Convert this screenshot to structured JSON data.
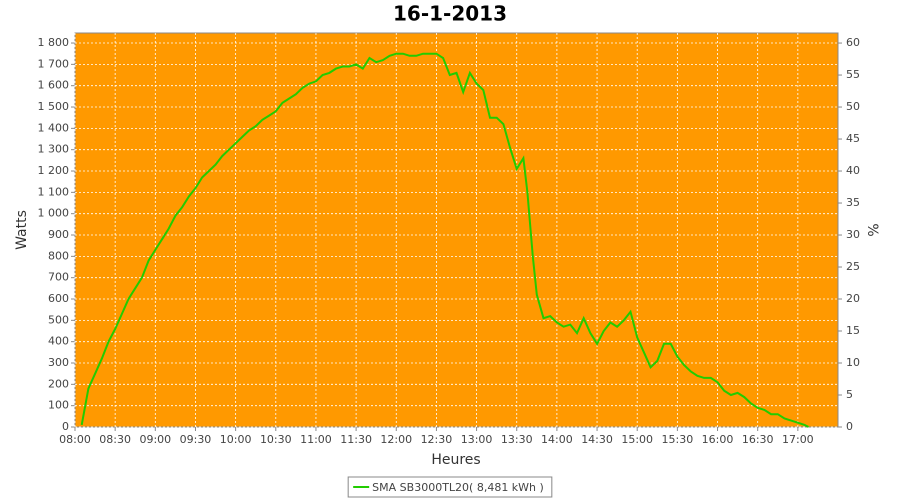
{
  "chart_data": {
    "type": "line",
    "title": "16-1-2013",
    "xlabel": "Heures",
    "ylabel": "Watts",
    "y2label": "%",
    "x": [
      485,
      490,
      495,
      500,
      505,
      510,
      515,
      520,
      525,
      530,
      535,
      540,
      545,
      550,
      555,
      560,
      565,
      570,
      575,
      580,
      585,
      590,
      595,
      600,
      605,
      610,
      615,
      620,
      625,
      630,
      635,
      640,
      645,
      650,
      655,
      660,
      665,
      670,
      675,
      680,
      685,
      690,
      695,
      700,
      705,
      710,
      715,
      720,
      725,
      730,
      735,
      740,
      745,
      750,
      755,
      760,
      765,
      770,
      775,
      780,
      785,
      790,
      795,
      800,
      805,
      810,
      815,
      818,
      822,
      825,
      830,
      835,
      840,
      845,
      850,
      855,
      860,
      865,
      870,
      875,
      880,
      885,
      890,
      895,
      900,
      905,
      910,
      915,
      920,
      925,
      930,
      935,
      940,
      945,
      950,
      955,
      960,
      965,
      970,
      975,
      980,
      985,
      990,
      995,
      1000,
      1005,
      1010,
      1015,
      1020,
      1025,
      1028
    ],
    "series": [
      {
        "name": "SMA SB3000TL20( 8,481 kWh )",
        "color": "#22cc00",
        "values": [
          10,
          180,
          250,
          320,
          400,
          460,
          530,
          600,
          650,
          700,
          780,
          830,
          880,
          930,
          990,
          1030,
          1080,
          1120,
          1170,
          1200,
          1230,
          1270,
          1300,
          1330,
          1360,
          1390,
          1410,
          1440,
          1460,
          1480,
          1520,
          1540,
          1560,
          1590,
          1610,
          1620,
          1650,
          1660,
          1680,
          1690,
          1690,
          1700,
          1680,
          1730,
          1710,
          1720,
          1740,
          1750,
          1750,
          1740,
          1740,
          1750,
          1750,
          1750,
          1730,
          1650,
          1660,
          1570,
          1660,
          1610,
          1580,
          1450,
          1450,
          1420,
          1310,
          1210,
          1260,
          1100,
          800,
          620,
          510,
          520,
          490,
          470,
          480,
          440,
          510,
          440,
          390,
          450,
          490,
          470,
          500,
          540,
          420,
          350,
          280,
          310,
          390,
          390,
          330,
          290,
          260,
          240,
          230,
          230,
          210,
          170,
          150,
          160,
          140,
          110,
          90,
          80,
          60,
          60,
          40,
          30,
          20,
          10,
          0
        ]
      }
    ],
    "xlim": [
      480,
      1050
    ],
    "xticks": [
      {
        "value": 480,
        "label": "08:00"
      },
      {
        "value": 510,
        "label": "08:30"
      },
      {
        "value": 540,
        "label": "09:00"
      },
      {
        "value": 570,
        "label": "09:30"
      },
      {
        "value": 600,
        "label": "10:00"
      },
      {
        "value": 630,
        "label": "10:30"
      },
      {
        "value": 660,
        "label": "11:00"
      },
      {
        "value": 690,
        "label": "11:30"
      },
      {
        "value": 720,
        "label": "12:00"
      },
      {
        "value": 750,
        "label": "12:30"
      },
      {
        "value": 780,
        "label": "13:00"
      },
      {
        "value": 810,
        "label": "13:30"
      },
      {
        "value": 840,
        "label": "14:00"
      },
      {
        "value": 870,
        "label": "14:30"
      },
      {
        "value": 900,
        "label": "15:00"
      },
      {
        "value": 930,
        "label": "15:30"
      },
      {
        "value": 960,
        "label": "16:00"
      },
      {
        "value": 990,
        "label": "16:30"
      },
      {
        "value": 1020,
        "label": "17:00"
      }
    ],
    "ylim": [
      0,
      1847
    ],
    "yticks": [
      0,
      100,
      200,
      300,
      400,
      500,
      600,
      700,
      800,
      900,
      {
        "value": 1000,
        "label": "1 000"
      },
      {
        "value": 1100,
        "label": "1 100"
      },
      {
        "value": 1200,
        "label": "1 200"
      },
      {
        "value": 1300,
        "label": "1 300"
      },
      {
        "value": 1400,
        "label": "1 400"
      },
      {
        "value": 1500,
        "label": "1 500"
      },
      {
        "value": 1600,
        "label": "1 600"
      },
      {
        "value": 1700,
        "label": "1 700"
      },
      {
        "value": 1800,
        "label": "1 800"
      }
    ],
    "y2lim": [
      0,
      61.57
    ],
    "y2ticks": [
      0,
      5,
      10,
      15,
      20,
      25,
      30,
      35,
      40,
      45,
      50,
      55,
      60
    ],
    "grid": true,
    "plot_background": "#ff9900"
  }
}
